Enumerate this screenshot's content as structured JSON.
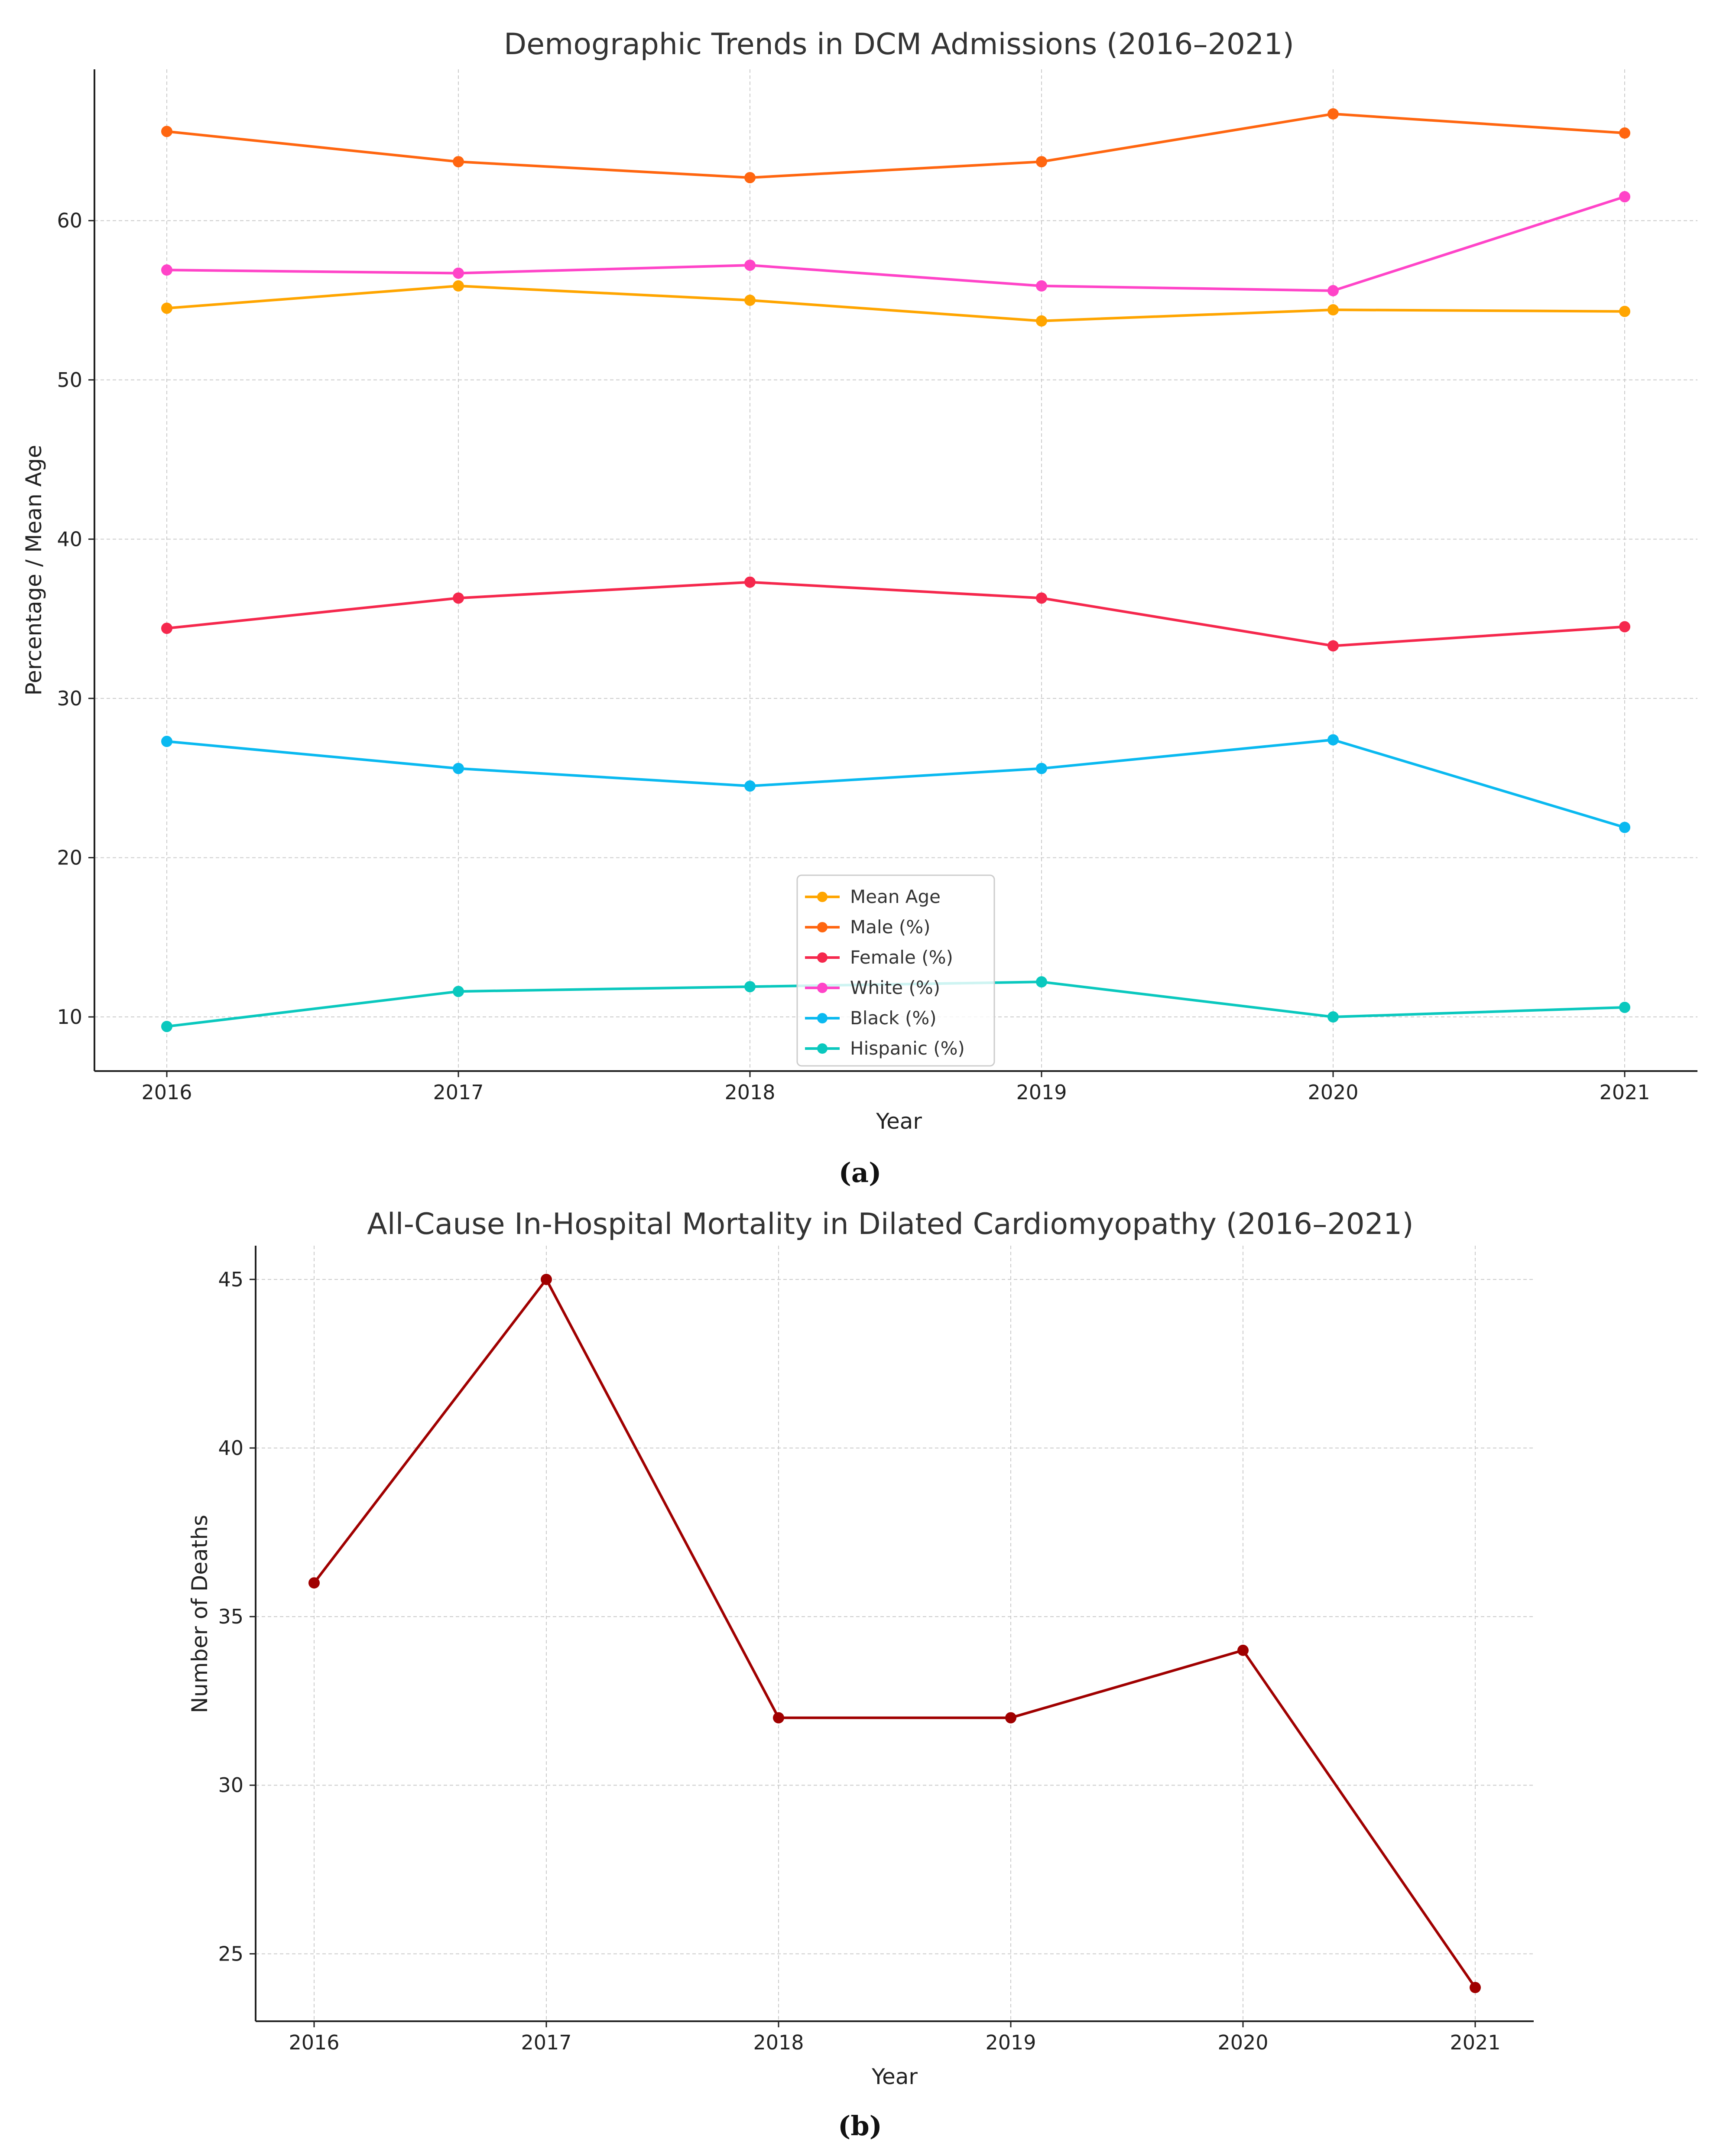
{
  "chart_data": [
    {
      "type": "line",
      "title": "Demographic Trends in DCM Admissions (2016–2021)",
      "xlabel": "Year",
      "ylabel": "Percentage / Mean Age",
      "categories": [
        "2016",
        "2017",
        "2018",
        "2019",
        "2020",
        "2021"
      ],
      "x": [
        2016,
        2017,
        2018,
        2019,
        2020,
        2021
      ],
      "ylim": [
        6.6,
        69.5
      ],
      "yticks": [
        10,
        20,
        30,
        40,
        50,
        60
      ],
      "grid": true,
      "legend": "bottom-center",
      "panel_label": "(a)",
      "series": [
        {
          "name": "Mean Age",
          "color": "#ffa500",
          "values": [
            54.5,
            55.9,
            55.0,
            53.7,
            54.4,
            54.3
          ]
        },
        {
          "name": "Male (%)",
          "color": "#ff6610",
          "values": [
            65.6,
            63.7,
            62.7,
            63.7,
            66.7,
            65.5
          ]
        },
        {
          "name": "Female (%)",
          "color": "#f5284d",
          "values": [
            34.4,
            36.3,
            37.3,
            36.3,
            33.3,
            34.5
          ]
        },
        {
          "name": "White (%)",
          "color": "#ff44c8",
          "values": [
            56.9,
            56.7,
            57.2,
            55.9,
            55.6,
            61.5
          ]
        },
        {
          "name": "Black (%)",
          "color": "#0ab9f0",
          "values": [
            27.3,
            25.6,
            24.5,
            25.6,
            27.4,
            21.9
          ]
        },
        {
          "name": "Hispanic (%)",
          "color": "#0ac8be",
          "values": [
            9.4,
            11.6,
            11.9,
            12.2,
            10.0,
            10.6
          ]
        }
      ]
    },
    {
      "type": "line",
      "title": "All-Cause In-Hospital Mortality in Dilated Cardiomyopathy (2016–2021)",
      "xlabel": "Year",
      "ylabel": "Number of Deaths",
      "categories": [
        "2016",
        "2017",
        "2018",
        "2019",
        "2020",
        "2021"
      ],
      "x": [
        2016,
        2017,
        2018,
        2019,
        2020,
        2021
      ],
      "ylim": [
        23.0,
        46.0
      ],
      "yticks": [
        25,
        30,
        35,
        40,
        45
      ],
      "grid": true,
      "panel_label": "(b)",
      "series": [
        {
          "name": "Deaths",
          "color": "#a00000",
          "values": [
            36,
            45,
            32,
            32,
            34,
            24
          ]
        }
      ]
    }
  ]
}
